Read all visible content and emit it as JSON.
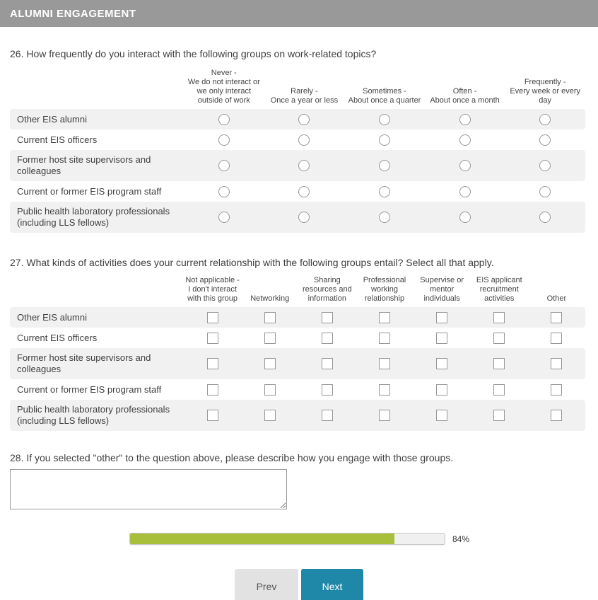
{
  "header": {
    "title": "ALUMNI ENGAGEMENT"
  },
  "questions": {
    "q26": {
      "text": "26. How frequently do you interact with the following groups on work-related topics?",
      "columns": [
        "Never -\nWe do not interact or\nwe only interact\noutside of work",
        "Rarely -\nOnce a year or less",
        "Sometimes -\nAbout once a quarter",
        "Often -\nAbout once a month",
        "Frequently -\nEvery week or every\nday"
      ],
      "rows": [
        "Other EIS alumni",
        "Current EIS officers",
        "Former host site supervisors and colleagues",
        "Current or former EIS program staff",
        "Public health laboratory professionals (including LLS fellows)"
      ]
    },
    "q27": {
      "text": "27. What kinds of activities does your current relationship with the following groups entail? Select all that apply.",
      "columns": [
        "Not applicable -\nI don't interact\nwith this group",
        "Networking",
        "Sharing\nresources and\ninformation",
        "Professional\nworking\nrelationship",
        "Supervise or\nmentor\nindividuals",
        "EIS applicant\nrecruitment\nactivities",
        "Other"
      ],
      "rows": [
        "Other EIS alumni",
        "Current EIS officers",
        "Former host site supervisors and colleagues",
        "Current or former EIS program staff",
        "Public health laboratory professionals (including LLS fellows)"
      ]
    },
    "q28": {
      "text": "28. If you selected \"other\" to the question above, please describe how you engage with those groups.",
      "answer": ""
    }
  },
  "progress": {
    "percent": 84,
    "label": "84%"
  },
  "nav": {
    "prev_label": "Prev",
    "next_label": "Next"
  },
  "colors": {
    "header_bg": "#999999",
    "alt_row_bg": "#f1f1f1",
    "progress_fill": "#a8bf3b",
    "progress_track": "#f0f0f0",
    "next_button_bg": "#1f87a7",
    "prev_button_bg": "#e2e2e2"
  }
}
